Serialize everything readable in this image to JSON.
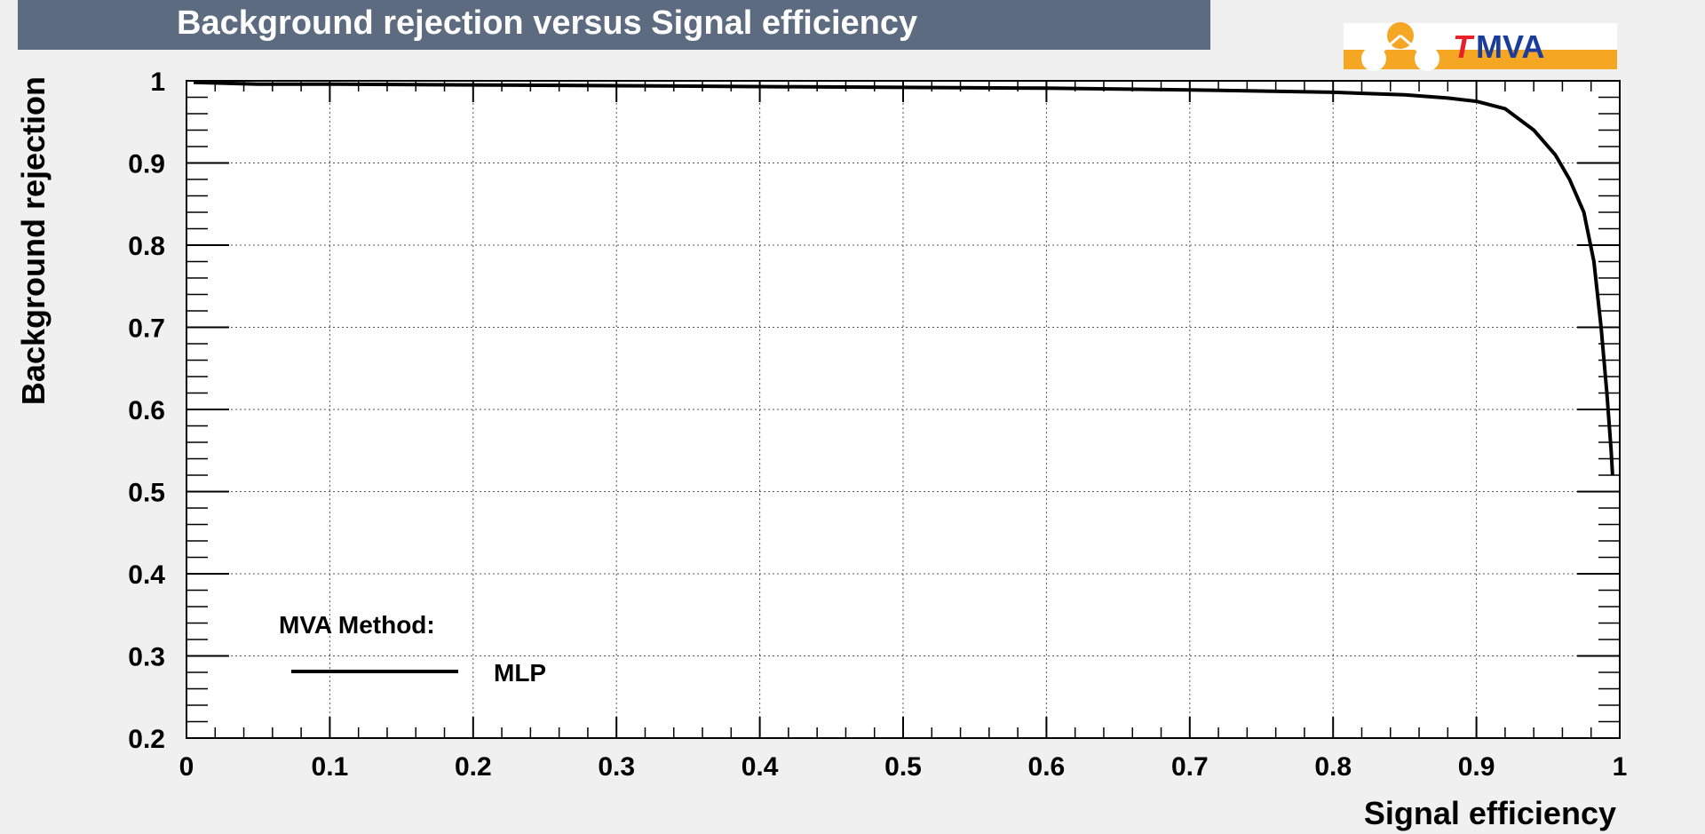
{
  "chart_data": {
    "type": "line",
    "title": "Background rejection versus Signal efficiency",
    "xlabel": "Signal efficiency",
    "ylabel": "Background rejection",
    "xlim": [
      0,
      1
    ],
    "ylim": [
      0.2,
      1
    ],
    "x_ticks": [
      "0",
      "0.1",
      "0.2",
      "0.3",
      "0.4",
      "0.5",
      "0.6",
      "0.7",
      "0.8",
      "0.9",
      "1"
    ],
    "y_ticks": [
      "0.2",
      "0.3",
      "0.4",
      "0.5",
      "0.6",
      "0.7",
      "0.8",
      "0.9",
      "1"
    ],
    "grid": true,
    "legend": {
      "header": "MVA Method:",
      "placement": "bottom-left"
    },
    "series": [
      {
        "name": "MLP",
        "color": "#000000",
        "x": [
          0.005,
          0.05,
          0.1,
          0.2,
          0.3,
          0.4,
          0.5,
          0.6,
          0.7,
          0.8,
          0.85,
          0.88,
          0.9,
          0.92,
          0.94,
          0.955,
          0.965,
          0.975,
          0.982,
          0.987,
          0.991,
          0.994,
          0.995
        ],
        "y": [
          0.998,
          0.996,
          0.996,
          0.995,
          0.994,
          0.993,
          0.992,
          0.991,
          0.989,
          0.986,
          0.983,
          0.979,
          0.975,
          0.966,
          0.94,
          0.91,
          0.88,
          0.84,
          0.78,
          0.7,
          0.62,
          0.55,
          0.52
        ]
      }
    ]
  },
  "logo": {
    "text": "TMVA",
    "accent": "#f5a623",
    "red": "#e8202a",
    "blue": "#1a3c9a"
  },
  "colors": {
    "title_bar": "#5c6b7f",
    "title_text": "#ffffff",
    "frame_bg": "#ffffff",
    "page_bg": "#f0f0f0"
  }
}
